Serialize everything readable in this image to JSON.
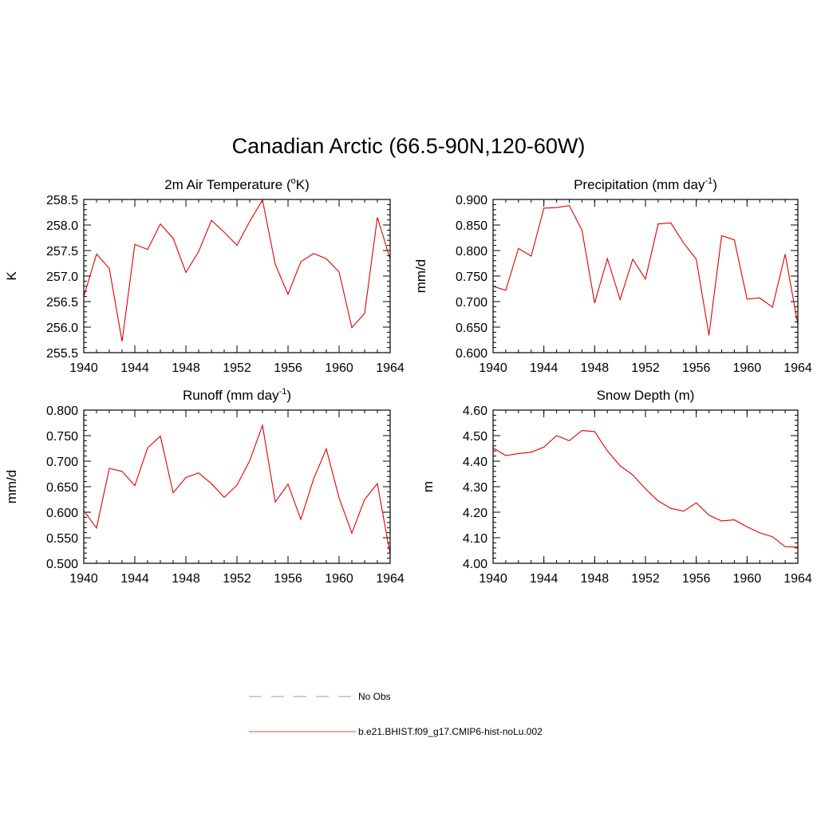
{
  "title": "Canadian Arctic (66.5-90N,120-60W)",
  "colors": {
    "model_line": "#e00000",
    "obs_line": "#a6a6f2",
    "axis": "#000000"
  },
  "legend": [
    {
      "label": "No Obs",
      "style": "dashed",
      "color": "#a6a6f2"
    },
    {
      "label": "b.e21.BHIST.f09_g17.CMIP6-hist-noLu.002",
      "style": "solid",
      "color": "#f07070"
    }
  ],
  "chart_data": [
    {
      "type": "line",
      "title": "2m Air Temperature (°K)",
      "title_main": "2m Air Temperature (",
      "title_sup": "o",
      "title_tail": "K)",
      "ylabel": "K",
      "xlim": [
        1940,
        1964
      ],
      "ylim": [
        255.5,
        258.5
      ],
      "xticks": [
        1940,
        1944,
        1948,
        1952,
        1956,
        1960,
        1964
      ],
      "xtick_labels": [
        "1940",
        "1944",
        "1948",
        "1952",
        "1956",
        "1960",
        "1964"
      ],
      "yticks": [
        255.5,
        256.0,
        256.5,
        257.0,
        257.5,
        258.0,
        258.5
      ],
      "ytick_labels": [
        "255.5",
        "256.0",
        "256.5",
        "257.0",
        "257.5",
        "258.0",
        "258.5"
      ],
      "x": [
        1940,
        1941,
        1942,
        1943,
        1944,
        1945,
        1946,
        1947,
        1948,
        1949,
        1950,
        1951,
        1952,
        1953,
        1954,
        1955,
        1956,
        1957,
        1958,
        1959,
        1960,
        1961,
        1962,
        1963,
        1964
      ],
      "series": [
        {
          "name": "b.e21.BHIST.f09_g17.CMIP6-hist-noLu.002",
          "values": [
            256.6,
            257.43,
            257.15,
            255.72,
            257.62,
            257.52,
            258.02,
            257.74,
            257.07,
            257.48,
            258.09,
            257.86,
            257.6,
            258.07,
            258.49,
            257.23,
            256.64,
            257.28,
            257.44,
            257.34,
            257.08,
            255.99,
            256.27,
            258.15,
            257.33
          ]
        }
      ]
    },
    {
      "type": "line",
      "title": "Precipitation (mm day-1)",
      "title_main": "Precipitation (mm day",
      "title_sup": "-1",
      "title_tail": ")",
      "ylabel": "mm/d",
      "xlim": [
        1940,
        1964
      ],
      "ylim": [
        0.6,
        0.9
      ],
      "xticks": [
        1940,
        1944,
        1948,
        1952,
        1956,
        1960,
        1964
      ],
      "xtick_labels": [
        "1940",
        "1944",
        "1948",
        "1952",
        "1956",
        "1960",
        "1964"
      ],
      "yticks": [
        0.6,
        0.65,
        0.7,
        0.75,
        0.8,
        0.85,
        0.9
      ],
      "ytick_labels": [
        "0.600",
        "0.650",
        "0.700",
        "0.750",
        "0.800",
        "0.850",
        "0.900"
      ],
      "x": [
        1940,
        1941,
        1942,
        1943,
        1944,
        1945,
        1946,
        1947,
        1948,
        1949,
        1950,
        1951,
        1952,
        1953,
        1954,
        1955,
        1956,
        1957,
        1958,
        1959,
        1960,
        1961,
        1962,
        1963,
        1964
      ],
      "series": [
        {
          "name": "b.e21.BHIST.f09_g17.CMIP6-hist-noLu.002",
          "values": [
            0.73,
            0.722,
            0.804,
            0.789,
            0.883,
            0.884,
            0.888,
            0.84,
            0.697,
            0.784,
            0.704,
            0.783,
            0.744,
            0.852,
            0.854,
            0.815,
            0.783,
            0.634,
            0.829,
            0.821,
            0.705,
            0.707,
            0.689,
            0.793,
            0.655
          ]
        }
      ]
    },
    {
      "type": "line",
      "title": "Runoff (mm day-1)",
      "title_main": "Runoff (mm day",
      "title_sup": "-1",
      "title_tail": ")",
      "ylabel": "mm/d",
      "xlim": [
        1940,
        1964
      ],
      "ylim": [
        0.5,
        0.8
      ],
      "xticks": [
        1940,
        1944,
        1948,
        1952,
        1956,
        1960,
        1964
      ],
      "xtick_labels": [
        "1940",
        "1944",
        "1948",
        "1952",
        "1956",
        "1960",
        "1964"
      ],
      "yticks": [
        0.5,
        0.55,
        0.6,
        0.65,
        0.7,
        0.75,
        0.8
      ],
      "ytick_labels": [
        "0.500",
        "0.550",
        "0.600",
        "0.650",
        "0.700",
        "0.750",
        "0.800"
      ],
      "x": [
        1940,
        1941,
        1942,
        1943,
        1944,
        1945,
        1946,
        1947,
        1948,
        1949,
        1950,
        1951,
        1952,
        1953,
        1954,
        1955,
        1956,
        1957,
        1958,
        1959,
        1960,
        1961,
        1962,
        1963,
        1964
      ],
      "series": [
        {
          "name": "b.e21.BHIST.f09_g17.CMIP6-hist-noLu.002",
          "values": [
            0.603,
            0.569,
            0.686,
            0.68,
            0.652,
            0.726,
            0.749,
            0.638,
            0.668,
            0.677,
            0.656,
            0.629,
            0.653,
            0.701,
            0.77,
            0.62,
            0.655,
            0.586,
            0.665,
            0.724,
            0.628,
            0.559,
            0.625,
            0.656,
            0.518
          ]
        }
      ]
    },
    {
      "type": "line",
      "title": "Snow Depth (m)",
      "title_main": "Snow Depth (m)",
      "title_sup": "",
      "title_tail": "",
      "ylabel": "m",
      "xlim": [
        1940,
        1964
      ],
      "ylim": [
        4.0,
        4.6
      ],
      "xticks": [
        1940,
        1944,
        1948,
        1952,
        1956,
        1960,
        1964
      ],
      "xtick_labels": [
        "1940",
        "1944",
        "1948",
        "1952",
        "1956",
        "1960",
        "1964"
      ],
      "yticks": [
        4.0,
        4.1,
        4.2,
        4.3,
        4.4,
        4.5,
        4.6
      ],
      "ytick_labels": [
        "4.00",
        "4.10",
        "4.20",
        "4.30",
        "4.40",
        "4.50",
        "4.60"
      ],
      "x": [
        1940,
        1941,
        1942,
        1943,
        1944,
        1945,
        1946,
        1947,
        1948,
        1949,
        1950,
        1951,
        1952,
        1953,
        1954,
        1955,
        1956,
        1957,
        1958,
        1959,
        1960,
        1961,
        1962,
        1963,
        1964
      ],
      "series": [
        {
          "name": "b.e21.BHIST.f09_g17.CMIP6-hist-noLu.002",
          "values": [
            4.452,
            4.422,
            4.43,
            4.435,
            4.455,
            4.5,
            4.48,
            4.52,
            4.516,
            4.44,
            4.382,
            4.346,
            4.292,
            4.244,
            4.215,
            4.204,
            4.237,
            4.188,
            4.166,
            4.17,
            4.143,
            4.119,
            4.104,
            4.065,
            4.063
          ]
        }
      ]
    }
  ]
}
